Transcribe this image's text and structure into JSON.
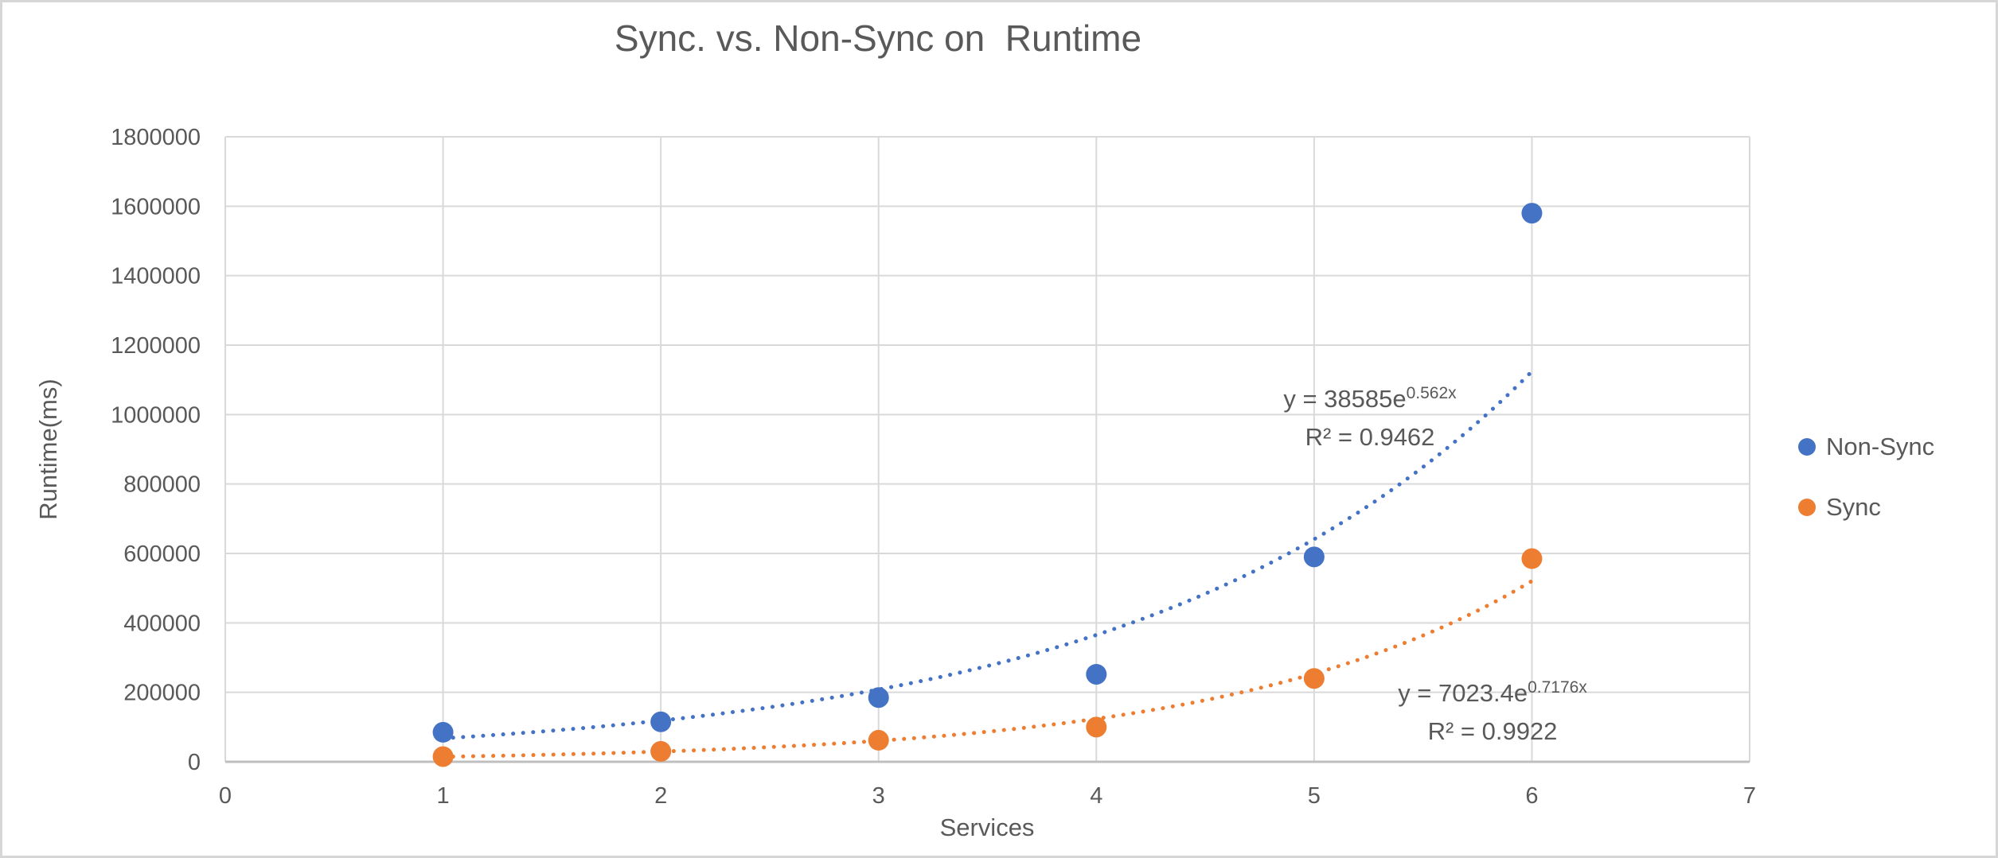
{
  "title": "Sync. vs. Non-Sync on  Runtime",
  "chart_data": {
    "type": "scatter",
    "title": "Sync. vs. Non-Sync on  Runtime",
    "xlabel": "Services",
    "ylabel": "Runtime(ms)",
    "xlim": [
      0,
      7
    ],
    "ylim": [
      0,
      1800000
    ],
    "x_ticks": [
      0,
      1,
      2,
      3,
      4,
      5,
      6,
      7
    ],
    "y_ticks": [
      0,
      200000,
      400000,
      600000,
      800000,
      1000000,
      1200000,
      1400000,
      1600000,
      1800000
    ],
    "grid": true,
    "legend_position": "right",
    "colors": {
      "grid": "#d9d9d9",
      "axis": "#bfbfbf",
      "text": "#595959"
    },
    "series": [
      {
        "name": "Non-Sync",
        "color": "#4472c4",
        "marker": "circle",
        "x": [
          1,
          2,
          3,
          4,
          5,
          6
        ],
        "y": [
          85000,
          115000,
          185000,
          252000,
          590000,
          1580000
        ],
        "trendline": {
          "type": "exponential",
          "a": 38585,
          "b": 0.562,
          "x_start": 1,
          "x_end": 6,
          "eq_base": "y = 38585e",
          "eq_exp": "0.562x",
          "r2": "R² = 0.9462"
        }
      },
      {
        "name": "Sync",
        "color": "#ed7d31",
        "marker": "circle",
        "x": [
          1,
          2,
          3,
          4,
          5,
          6
        ],
        "y": [
          15000,
          30000,
          62000,
          100000,
          240000,
          585000
        ],
        "trendline": {
          "type": "exponential",
          "a": 7023.4,
          "b": 0.7176,
          "x_start": 1,
          "x_end": 6,
          "eq_base": "y = 7023.4e",
          "eq_exp": "0.7176x",
          "r2": "R² = 0.9922"
        }
      }
    ]
  },
  "legend": {
    "items": [
      {
        "label": "Non-Sync",
        "color": "#4472c4"
      },
      {
        "label": "Sync",
        "color": "#ed7d31"
      }
    ]
  }
}
